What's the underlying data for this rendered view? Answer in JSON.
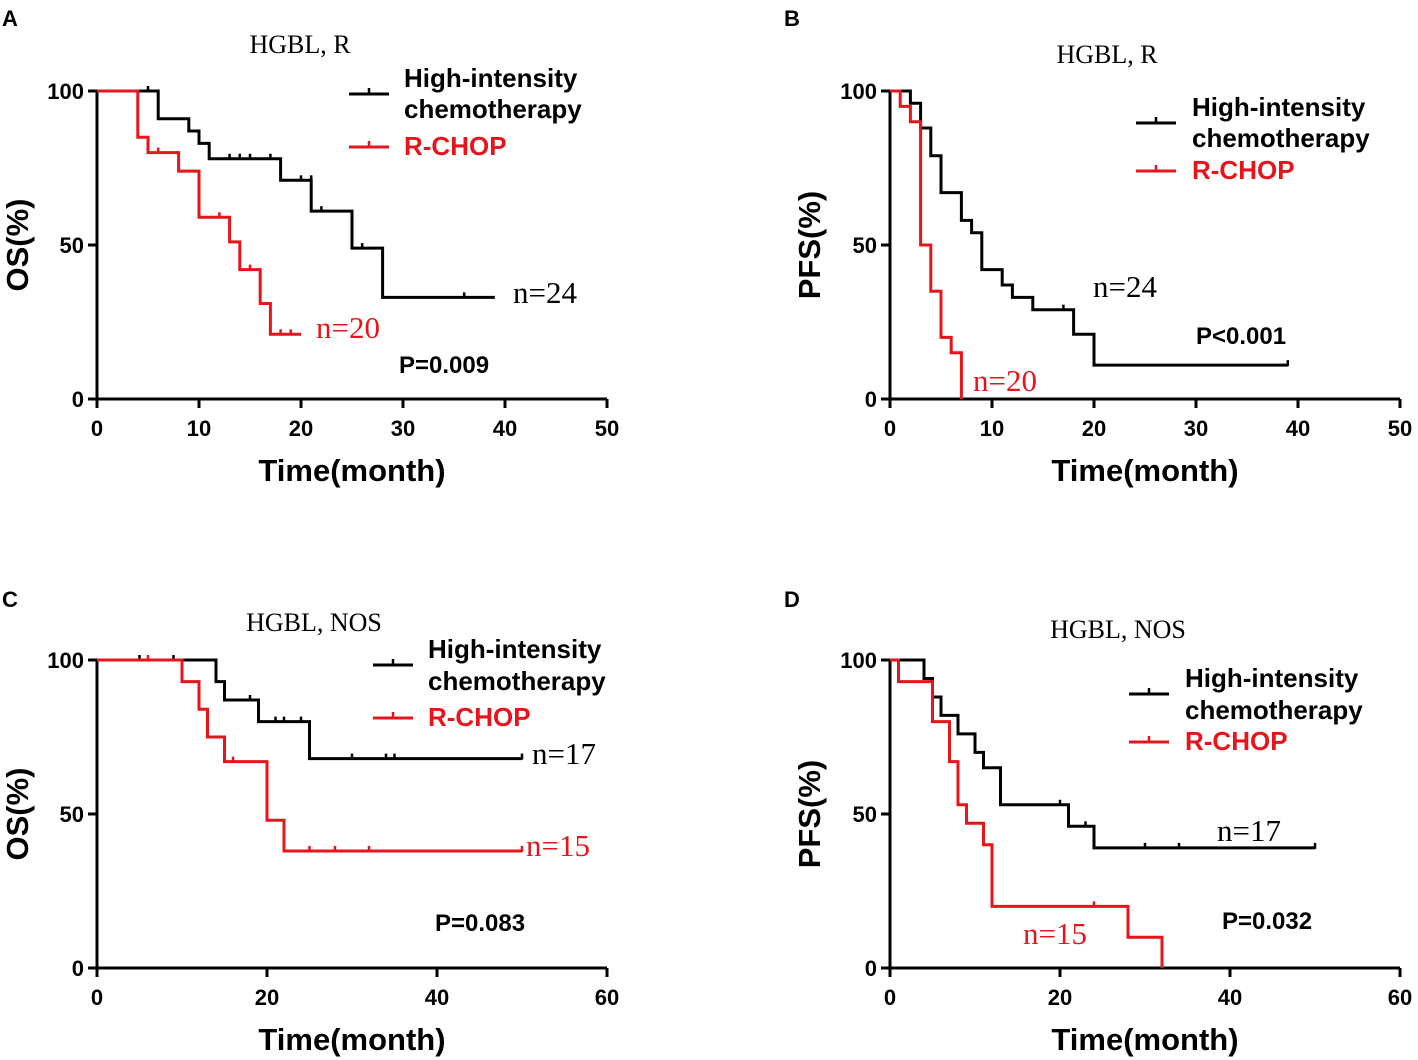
{
  "figure": {
    "colors": {
      "high_intensity": "#000000",
      "rchop": "#e8141b"
    },
    "legend_entries": [
      "High-intensity",
      "chemotherapy",
      "R-CHOP"
    ]
  },
  "chart_data": [
    {
      "panel": "A",
      "type": "line",
      "subtype": "kaplan-meier",
      "title": "HGBL, R",
      "xlabel": "Time(month)",
      "ylabel": "OS(%)",
      "xlim": [
        0,
        50
      ],
      "ylim": [
        0,
        100
      ],
      "xticks": [
        0,
        10,
        20,
        30,
        40,
        50
      ],
      "yticks": [
        0,
        50,
        100
      ],
      "legend": [
        "High-intensity",
        "chemotherapy",
        "R-CHOP"
      ],
      "p_value": "P=0.009",
      "series": [
        {
          "name": "High-intensity chemotherapy",
          "color": "#000000",
          "n_label": "n=24",
          "steps": [
            [
              0,
              100
            ],
            [
              6,
              100
            ],
            [
              6,
              91
            ],
            [
              9,
              91
            ],
            [
              9,
              87
            ],
            [
              10,
              87
            ],
            [
              10,
              83
            ],
            [
              11,
              83
            ],
            [
              11,
              78
            ],
            [
              18,
              78
            ],
            [
              18,
              71
            ],
            [
              21,
              71
            ],
            [
              21,
              61
            ],
            [
              25,
              61
            ],
            [
              25,
              49
            ],
            [
              28,
              49
            ],
            [
              28,
              33
            ],
            [
              39,
              33
            ]
          ],
          "censors": [
            [
              5,
              100
            ],
            [
              13,
              78
            ],
            [
              14,
              78
            ],
            [
              15,
              78
            ],
            [
              17,
              78
            ],
            [
              20,
              71
            ],
            [
              21,
              71
            ],
            [
              22,
              61
            ],
            [
              26,
              49
            ],
            [
              36,
              33
            ]
          ]
        },
        {
          "name": "R-CHOP",
          "color": "#e8141b",
          "n_label": "n=20",
          "steps": [
            [
              0,
              100
            ],
            [
              4,
              100
            ],
            [
              4,
              85
            ],
            [
              5,
              85
            ],
            [
              5,
              80
            ],
            [
              8,
              80
            ],
            [
              8,
              74
            ],
            [
              10,
              74
            ],
            [
              10,
              59
            ],
            [
              13,
              59
            ],
            [
              13,
              51
            ],
            [
              14,
              51
            ],
            [
              14,
              42
            ],
            [
              16,
              42
            ],
            [
              16,
              31
            ],
            [
              17,
              31
            ],
            [
              17,
              21
            ],
            [
              20,
              21
            ]
          ],
          "censors": [
            [
              6,
              80
            ],
            [
              12,
              59
            ],
            [
              15,
              42
            ],
            [
              18,
              21
            ],
            [
              19,
              21
            ]
          ]
        }
      ]
    },
    {
      "panel": "B",
      "type": "line",
      "subtype": "kaplan-meier",
      "title": "HGBL, R",
      "xlabel": "Time(month)",
      "ylabel": "PFS(%)",
      "xlim": [
        0,
        50
      ],
      "ylim": [
        0,
        100
      ],
      "xticks": [
        0,
        10,
        20,
        30,
        40,
        50
      ],
      "yticks": [
        0,
        50,
        100
      ],
      "legend": [
        "High-intensity",
        "chemotherapy",
        "R-CHOP"
      ],
      "p_value": "P<0.001",
      "series": [
        {
          "name": "High-intensity chemotherapy",
          "color": "#000000",
          "n_label": "n=24",
          "steps": [
            [
              0,
              100
            ],
            [
              2,
              100
            ],
            [
              2,
              96
            ],
            [
              3,
              96
            ],
            [
              3,
              88
            ],
            [
              4,
              88
            ],
            [
              4,
              79
            ],
            [
              5,
              79
            ],
            [
              5,
              67
            ],
            [
              7,
              67
            ],
            [
              7,
              58
            ],
            [
              8,
              58
            ],
            [
              8,
              54
            ],
            [
              9,
              54
            ],
            [
              9,
              42
            ],
            [
              11,
              42
            ],
            [
              11,
              37
            ],
            [
              12,
              37
            ],
            [
              12,
              33
            ],
            [
              14,
              33
            ],
            [
              14,
              29
            ],
            [
              18,
              29
            ],
            [
              18,
              21
            ],
            [
              20,
              21
            ],
            [
              20,
              11
            ],
            [
              39,
              11
            ]
          ],
          "censors": [
            [
              17,
              29
            ],
            [
              39,
              11
            ]
          ]
        },
        {
          "name": "R-CHOP",
          "color": "#e8141b",
          "n_label": "n=20",
          "steps": [
            [
              0,
              100
            ],
            [
              1,
              100
            ],
            [
              1,
              95
            ],
            [
              2,
              95
            ],
            [
              2,
              90
            ],
            [
              3,
              90
            ],
            [
              3,
              50
            ],
            [
              4,
              50
            ],
            [
              4,
              35
            ],
            [
              5,
              35
            ],
            [
              5,
              20
            ],
            [
              6,
              20
            ],
            [
              6,
              15
            ],
            [
              7,
              15
            ],
            [
              7,
              0
            ]
          ],
          "censors": []
        }
      ]
    },
    {
      "panel": "C",
      "type": "line",
      "subtype": "kaplan-meier",
      "title": "HGBL, NOS",
      "xlabel": "Time(month)",
      "ylabel": "OS(%)",
      "xlim": [
        0,
        60
      ],
      "ylim": [
        0,
        100
      ],
      "xticks": [
        0,
        20,
        40,
        60
      ],
      "yticks": [
        0,
        50,
        100
      ],
      "legend": [
        "High-intensity",
        "chemotherapy",
        "R-CHOP"
      ],
      "p_value": "P=0.083",
      "series": [
        {
          "name": "High-intensity chemotherapy",
          "color": "#000000",
          "n_label": "n=17",
          "steps": [
            [
              0,
              100
            ],
            [
              14,
              100
            ],
            [
              14,
              93
            ],
            [
              15,
              93
            ],
            [
              15,
              87
            ],
            [
              19,
              87
            ],
            [
              19,
              80
            ],
            [
              25,
              80
            ],
            [
              25,
              68
            ],
            [
              50,
              68
            ]
          ],
          "censors": [
            [
              5,
              100
            ],
            [
              9,
              100
            ],
            [
              18,
              87
            ],
            [
              21,
              80
            ],
            [
              22,
              80
            ],
            [
              24,
              80
            ],
            [
              30,
              68
            ],
            [
              34,
              68
            ],
            [
              35,
              68
            ],
            [
              50,
              68
            ]
          ]
        },
        {
          "name": "R-CHOP",
          "color": "#e8141b",
          "n_label": "n=15",
          "steps": [
            [
              0,
              100
            ],
            [
              10,
              100
            ],
            [
              10,
              93
            ],
            [
              12,
              93
            ],
            [
              12,
              84
            ],
            [
              13,
              84
            ],
            [
              13,
              75
            ],
            [
              15,
              75
            ],
            [
              15,
              67
            ],
            [
              20,
              67
            ],
            [
              20,
              48
            ],
            [
              22,
              48
            ],
            [
              22,
              38
            ],
            [
              50,
              38
            ]
          ],
          "censors": [
            [
              6,
              100
            ],
            [
              16,
              67
            ],
            [
              25,
              38
            ],
            [
              28,
              38
            ],
            [
              32,
              38
            ],
            [
              50,
              38
            ]
          ]
        }
      ]
    },
    {
      "panel": "D",
      "type": "line",
      "subtype": "kaplan-meier",
      "title": "HGBL, NOS",
      "xlabel": "Time(month)",
      "ylabel": "PFS(%)",
      "xlim": [
        0,
        60
      ],
      "ylim": [
        0,
        100
      ],
      "xticks": [
        0,
        20,
        40,
        60
      ],
      "yticks": [
        0,
        50,
        100
      ],
      "legend": [
        "High-intensity",
        "chemotherapy",
        "R-CHOP"
      ],
      "p_value": "P=0.032",
      "series": [
        {
          "name": "High-intensity chemotherapy",
          "color": "#000000",
          "n_label": "n=17",
          "steps": [
            [
              0,
              100
            ],
            [
              4,
              100
            ],
            [
              4,
              94
            ],
            [
              5,
              94
            ],
            [
              5,
              88
            ],
            [
              6,
              88
            ],
            [
              6,
              82
            ],
            [
              8,
              82
            ],
            [
              8,
              76
            ],
            [
              10,
              76
            ],
            [
              10,
              70
            ],
            [
              11,
              70
            ],
            [
              11,
              65
            ],
            [
              13,
              65
            ],
            [
              13,
              53
            ],
            [
              21,
              53
            ],
            [
              21,
              46
            ],
            [
              24,
              46
            ],
            [
              24,
              39
            ],
            [
              50,
              39
            ]
          ],
          "censors": [
            [
              20,
              53
            ],
            [
              23,
              46
            ],
            [
              30,
              39
            ],
            [
              34,
              39
            ],
            [
              50,
              39
            ]
          ]
        },
        {
          "name": "R-CHOP",
          "color": "#e8141b",
          "n_label": "n=15",
          "steps": [
            [
              0,
              100
            ],
            [
              1,
              100
            ],
            [
              1,
              93
            ],
            [
              5,
              93
            ],
            [
              5,
              80
            ],
            [
              7,
              80
            ],
            [
              7,
              67
            ],
            [
              8,
              67
            ],
            [
              8,
              53
            ],
            [
              9,
              53
            ],
            [
              9,
              47
            ],
            [
              11,
              47
            ],
            [
              11,
              40
            ],
            [
              12,
              40
            ],
            [
              12,
              20
            ],
            [
              28,
              20
            ],
            [
              28,
              10
            ],
            [
              32,
              10
            ],
            [
              32,
              0
            ]
          ],
          "censors": [
            [
              24,
              20
            ]
          ]
        }
      ]
    }
  ]
}
